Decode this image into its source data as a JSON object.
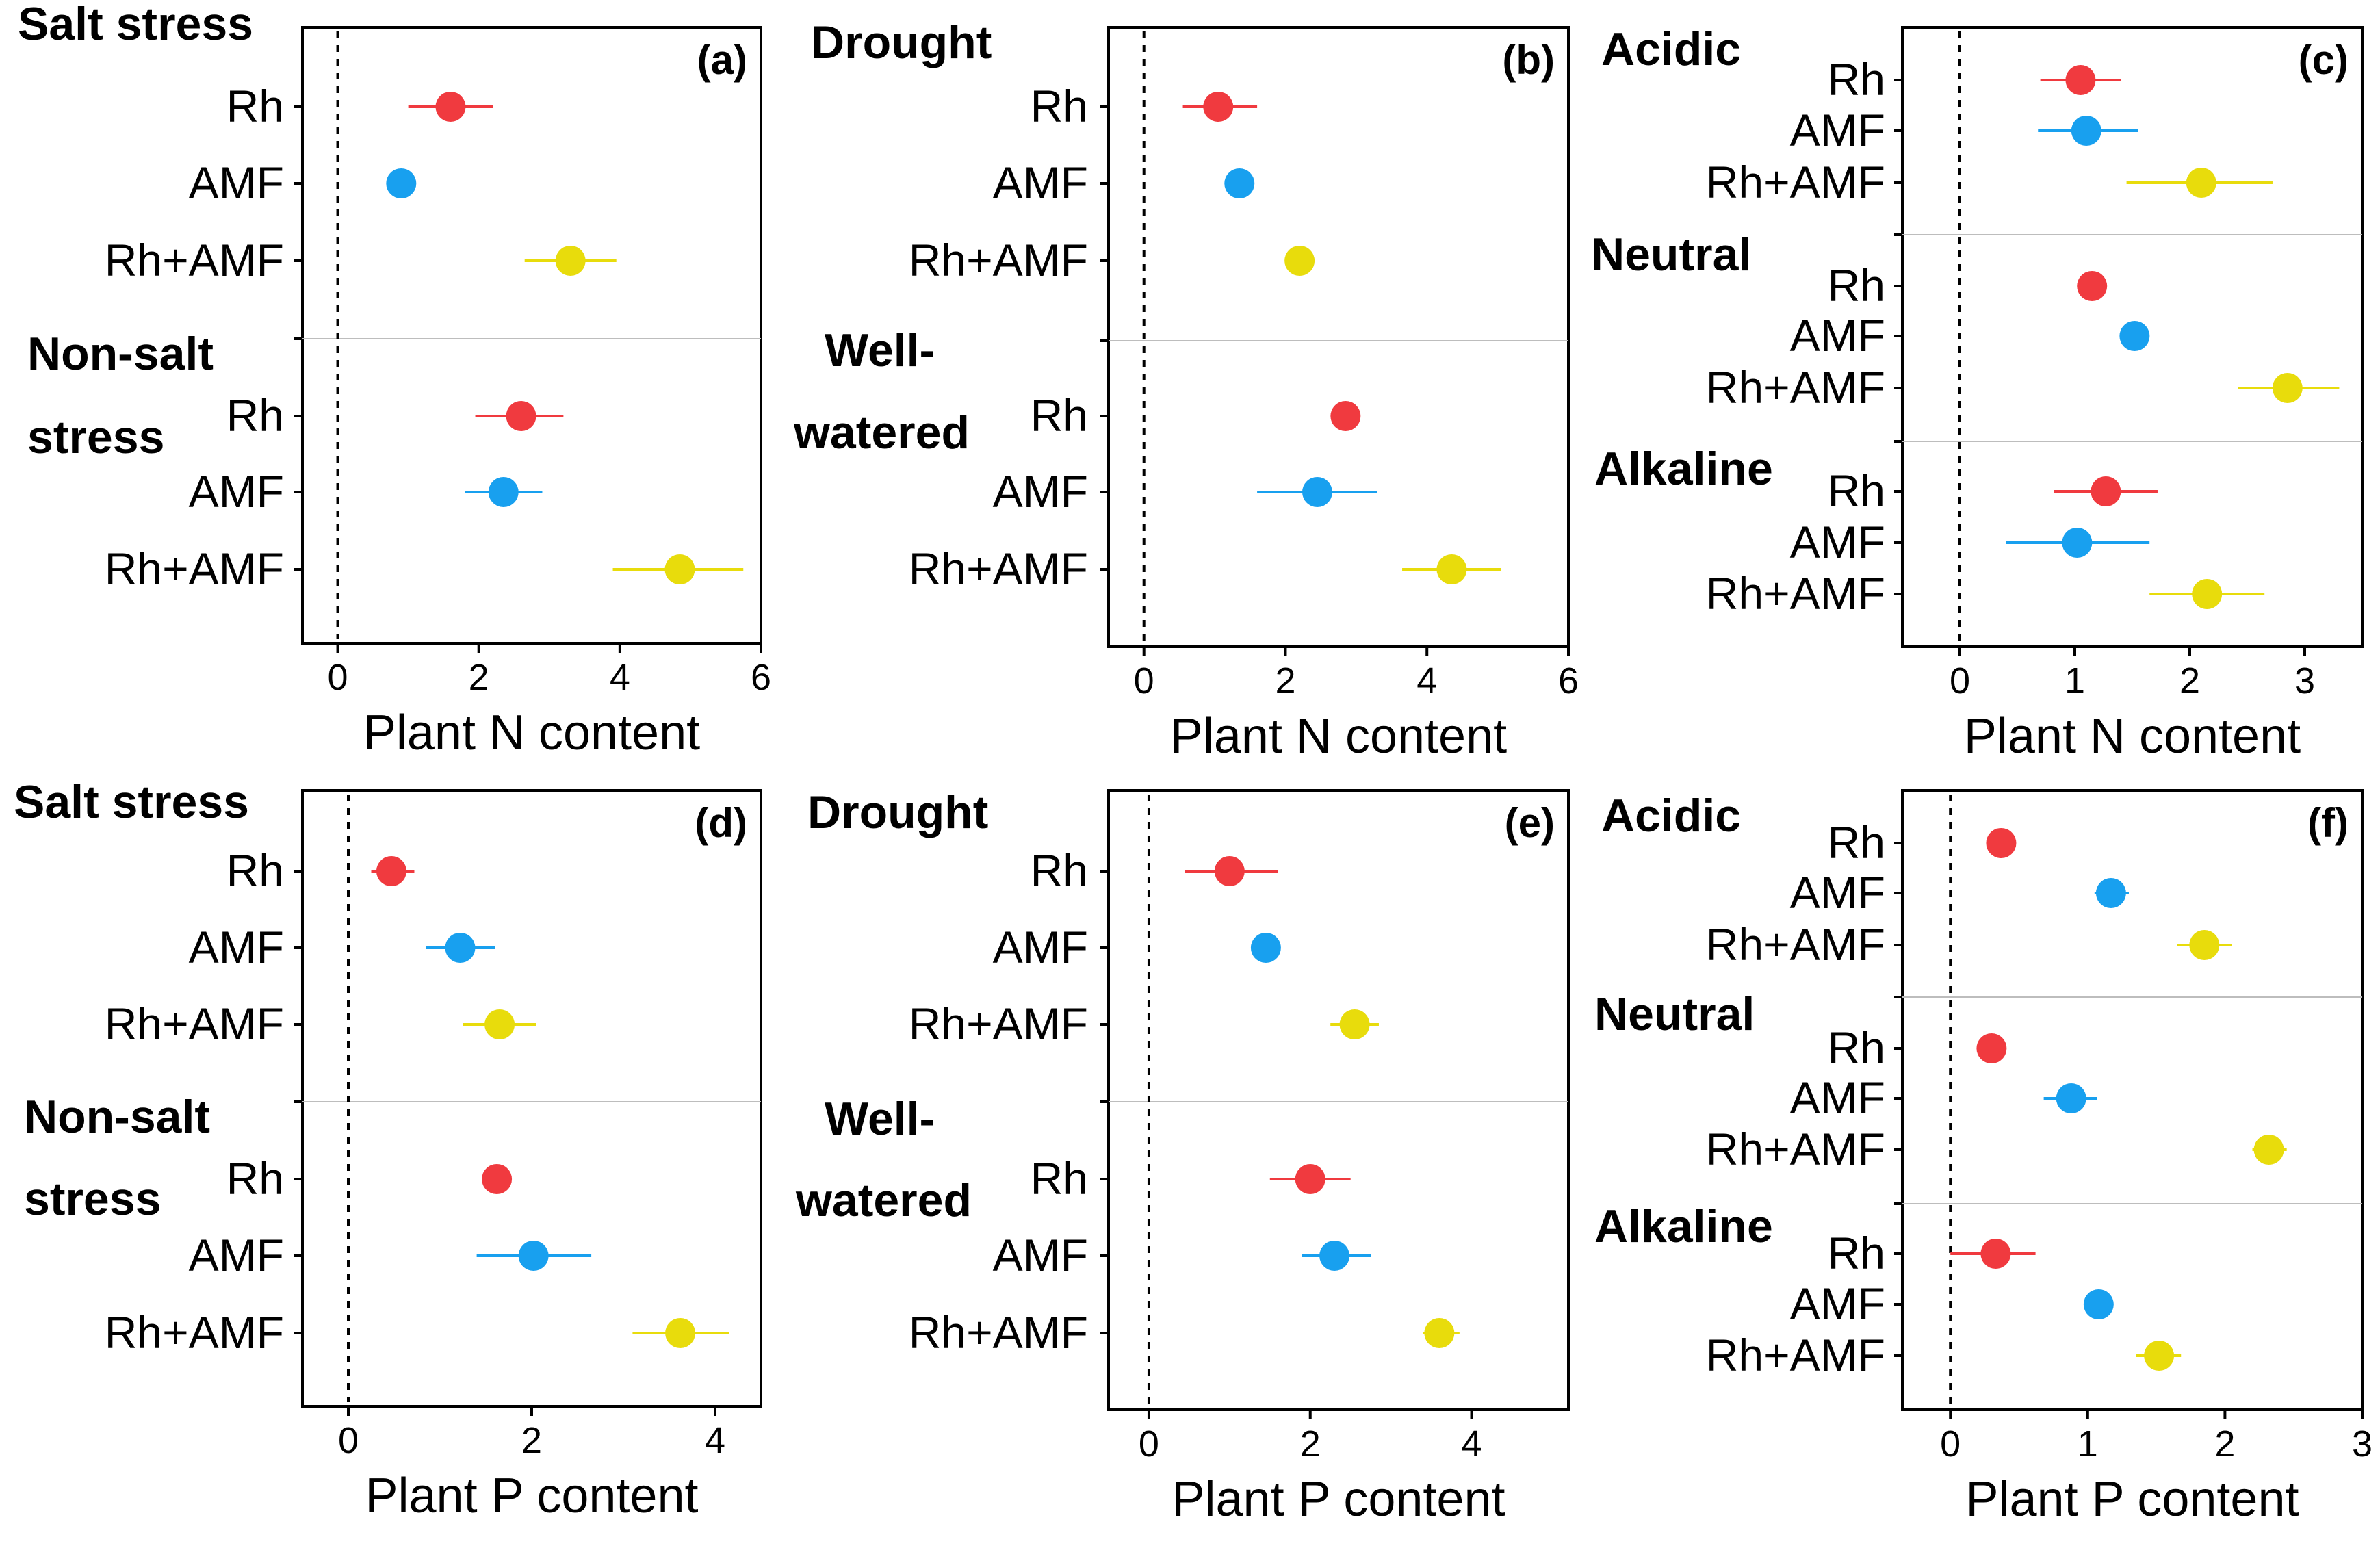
{
  "figure": {
    "description_colors": {
      "Rh": "#f03a3f",
      "AMF": "#18a0ef",
      "Rh+AMF": "#e8dc0c"
    }
  },
  "chart_data": [
    {
      "type": "scatter",
      "panel": "(a)",
      "xlabel": "Plant N content",
      "xlim": [
        -0.5,
        6
      ],
      "ticks": [
        0,
        2,
        4,
        6
      ],
      "tick_labels": [
        "0",
        "2",
        "4",
        "6"
      ],
      "groups": [
        {
          "name": "Salt stress",
          "items": [
            {
              "label": "Rh",
              "mean": 1.6,
              "lo": 1.0,
              "hi": 2.2
            },
            {
              "label": "AMF",
              "mean": 0.9,
              "lo": 0.9,
              "hi": 0.9
            },
            {
              "label": "Rh+AMF",
              "mean": 3.3,
              "lo": 2.65,
              "hi": 3.95
            }
          ]
        },
        {
          "name": "Non-salt stress",
          "items": [
            {
              "label": "Rh",
              "mean": 2.6,
              "lo": 1.95,
              "hi": 3.2
            },
            {
              "label": "AMF",
              "mean": 2.35,
              "lo": 1.8,
              "hi": 2.9
            },
            {
              "label": "Rh+AMF",
              "mean": 4.85,
              "lo": 3.9,
              "hi": 5.75
            }
          ]
        }
      ]
    },
    {
      "type": "scatter",
      "panel": "(b)",
      "xlabel": "Plant N content",
      "xlim": [
        -0.5,
        6
      ],
      "ticks": [
        0,
        2,
        4,
        6
      ],
      "tick_labels": [
        "0",
        "2",
        "4",
        "6"
      ],
      "groups": [
        {
          "name": "Drought",
          "items": [
            {
              "label": "Rh",
              "mean": 1.05,
              "lo": 0.55,
              "hi": 1.6
            },
            {
              "label": "AMF",
              "mean": 1.35,
              "lo": 1.35,
              "hi": 1.35
            },
            {
              "label": "Rh+AMF",
              "mean": 2.2,
              "lo": 2.2,
              "hi": 2.2
            }
          ]
        },
        {
          "name": "Well-watered",
          "items": [
            {
              "label": "Rh",
              "mean": 2.85,
              "lo": 2.85,
              "hi": 2.85
            },
            {
              "label": "AMF",
              "mean": 2.45,
              "lo": 1.6,
              "hi": 3.3
            },
            {
              "label": "Rh+AMF",
              "mean": 4.35,
              "lo": 3.65,
              "hi": 5.05
            }
          ]
        }
      ]
    },
    {
      "type": "scatter",
      "panel": "(c)",
      "xlabel": "Plant N content",
      "xlim": [
        -0.5,
        3.5
      ],
      "ticks": [
        0,
        1,
        2,
        3
      ],
      "tick_labels": [
        "0",
        "1",
        "2",
        "3"
      ],
      "groups": [
        {
          "name": "Acidic",
          "items": [
            {
              "label": "Rh",
              "mean": 1.05,
              "lo": 0.7,
              "hi": 1.4
            },
            {
              "label": "AMF",
              "mean": 1.1,
              "lo": 0.68,
              "hi": 1.55
            },
            {
              "label": "Rh+AMF",
              "mean": 2.1,
              "lo": 1.45,
              "hi": 2.72
            }
          ]
        },
        {
          "name": "Neutral",
          "items": [
            {
              "label": "Rh",
              "mean": 1.15,
              "lo": 1.15,
              "hi": 1.15
            },
            {
              "label": "AMF",
              "mean": 1.52,
              "lo": 1.52,
              "hi": 1.52
            },
            {
              "label": "Rh+AMF",
              "mean": 2.85,
              "lo": 2.42,
              "hi": 3.3
            }
          ]
        },
        {
          "name": "Alkaline",
          "items": [
            {
              "label": "Rh",
              "mean": 1.27,
              "lo": 0.82,
              "hi": 1.72
            },
            {
              "label": "AMF",
              "mean": 1.02,
              "lo": 0.4,
              "hi": 1.65
            },
            {
              "label": "Rh+AMF",
              "mean": 2.15,
              "lo": 1.65,
              "hi": 2.65
            }
          ]
        }
      ]
    },
    {
      "type": "scatter",
      "panel": "(d)",
      "xlabel": "Plant P content",
      "xlim": [
        -0.5,
        4.5
      ],
      "ticks": [
        0,
        2,
        4
      ],
      "tick_labels": [
        "0",
        "2",
        "4"
      ],
      "groups": [
        {
          "name": "Salt stress",
          "items": [
            {
              "label": "Rh",
              "mean": 0.47,
              "lo": 0.25,
              "hi": 0.72
            },
            {
              "label": "AMF",
              "mean": 1.22,
              "lo": 0.85,
              "hi": 1.6
            },
            {
              "label": "Rh+AMF",
              "mean": 1.65,
              "lo": 1.25,
              "hi": 2.05
            }
          ]
        },
        {
          "name": "Non-salt stress",
          "items": [
            {
              "label": "Rh",
              "mean": 1.62,
              "lo": 1.62,
              "hi": 1.62
            },
            {
              "label": "AMF",
              "mean": 2.02,
              "lo": 1.4,
              "hi": 2.65
            },
            {
              "label": "Rh+AMF",
              "mean": 3.62,
              "lo": 3.1,
              "hi": 4.15
            }
          ]
        }
      ]
    },
    {
      "type": "scatter",
      "panel": "(e)",
      "xlabel": "Plant P content",
      "xlim": [
        -0.5,
        5.2
      ],
      "ticks": [
        0,
        2,
        4
      ],
      "tick_labels": [
        "0",
        "2",
        "4"
      ],
      "groups": [
        {
          "name": "Drought",
          "items": [
            {
              "label": "Rh",
              "mean": 1.0,
              "lo": 0.45,
              "hi": 1.6
            },
            {
              "label": "AMF",
              "mean": 1.45,
              "lo": 1.45,
              "hi": 1.45
            },
            {
              "label": "Rh+AMF",
              "mean": 2.55,
              "lo": 2.25,
              "hi": 2.85
            }
          ]
        },
        {
          "name": "Well-watered",
          "items": [
            {
              "label": "Rh",
              "mean": 2.0,
              "lo": 1.5,
              "hi": 2.5
            },
            {
              "label": "AMF",
              "mean": 2.3,
              "lo": 1.9,
              "hi": 2.75
            },
            {
              "label": "Rh+AMF",
              "mean": 3.6,
              "lo": 3.4,
              "hi": 3.85
            }
          ]
        }
      ]
    },
    {
      "type": "scatter",
      "panel": "(f)",
      "xlabel": "Plant P content",
      "xlim": [
        -0.35,
        3.0
      ],
      "ticks": [
        0,
        1,
        2,
        3
      ],
      "tick_labels": [
        "0",
        "1",
        "2",
        "3"
      ],
      "groups": [
        {
          "name": "Acidic",
          "items": [
            {
              "label": "Rh",
              "mean": 0.37,
              "lo": 0.37,
              "hi": 0.37
            },
            {
              "label": "AMF",
              "mean": 1.17,
              "lo": 1.05,
              "hi": 1.3
            },
            {
              "label": "Rh+AMF",
              "mean": 1.85,
              "lo": 1.65,
              "hi": 2.05
            }
          ]
        },
        {
          "name": "Neutral",
          "items": [
            {
              "label": "Rh",
              "mean": 0.3,
              "lo": 0.3,
              "hi": 0.3
            },
            {
              "label": "AMF",
              "mean": 0.88,
              "lo": 0.68,
              "hi": 1.07
            },
            {
              "label": "Rh+AMF",
              "mean": 2.32,
              "lo": 2.2,
              "hi": 2.45
            }
          ]
        },
        {
          "name": "Alkaline",
          "items": [
            {
              "label": "Rh",
              "mean": 0.33,
              "lo": 0.0,
              "hi": 0.62
            },
            {
              "label": "AMF",
              "mean": 1.08,
              "lo": 1.08,
              "hi": 1.08
            },
            {
              "label": "Rh+AMF",
              "mean": 1.52,
              "lo": 1.35,
              "hi": 1.68
            }
          ]
        }
      ]
    }
  ]
}
